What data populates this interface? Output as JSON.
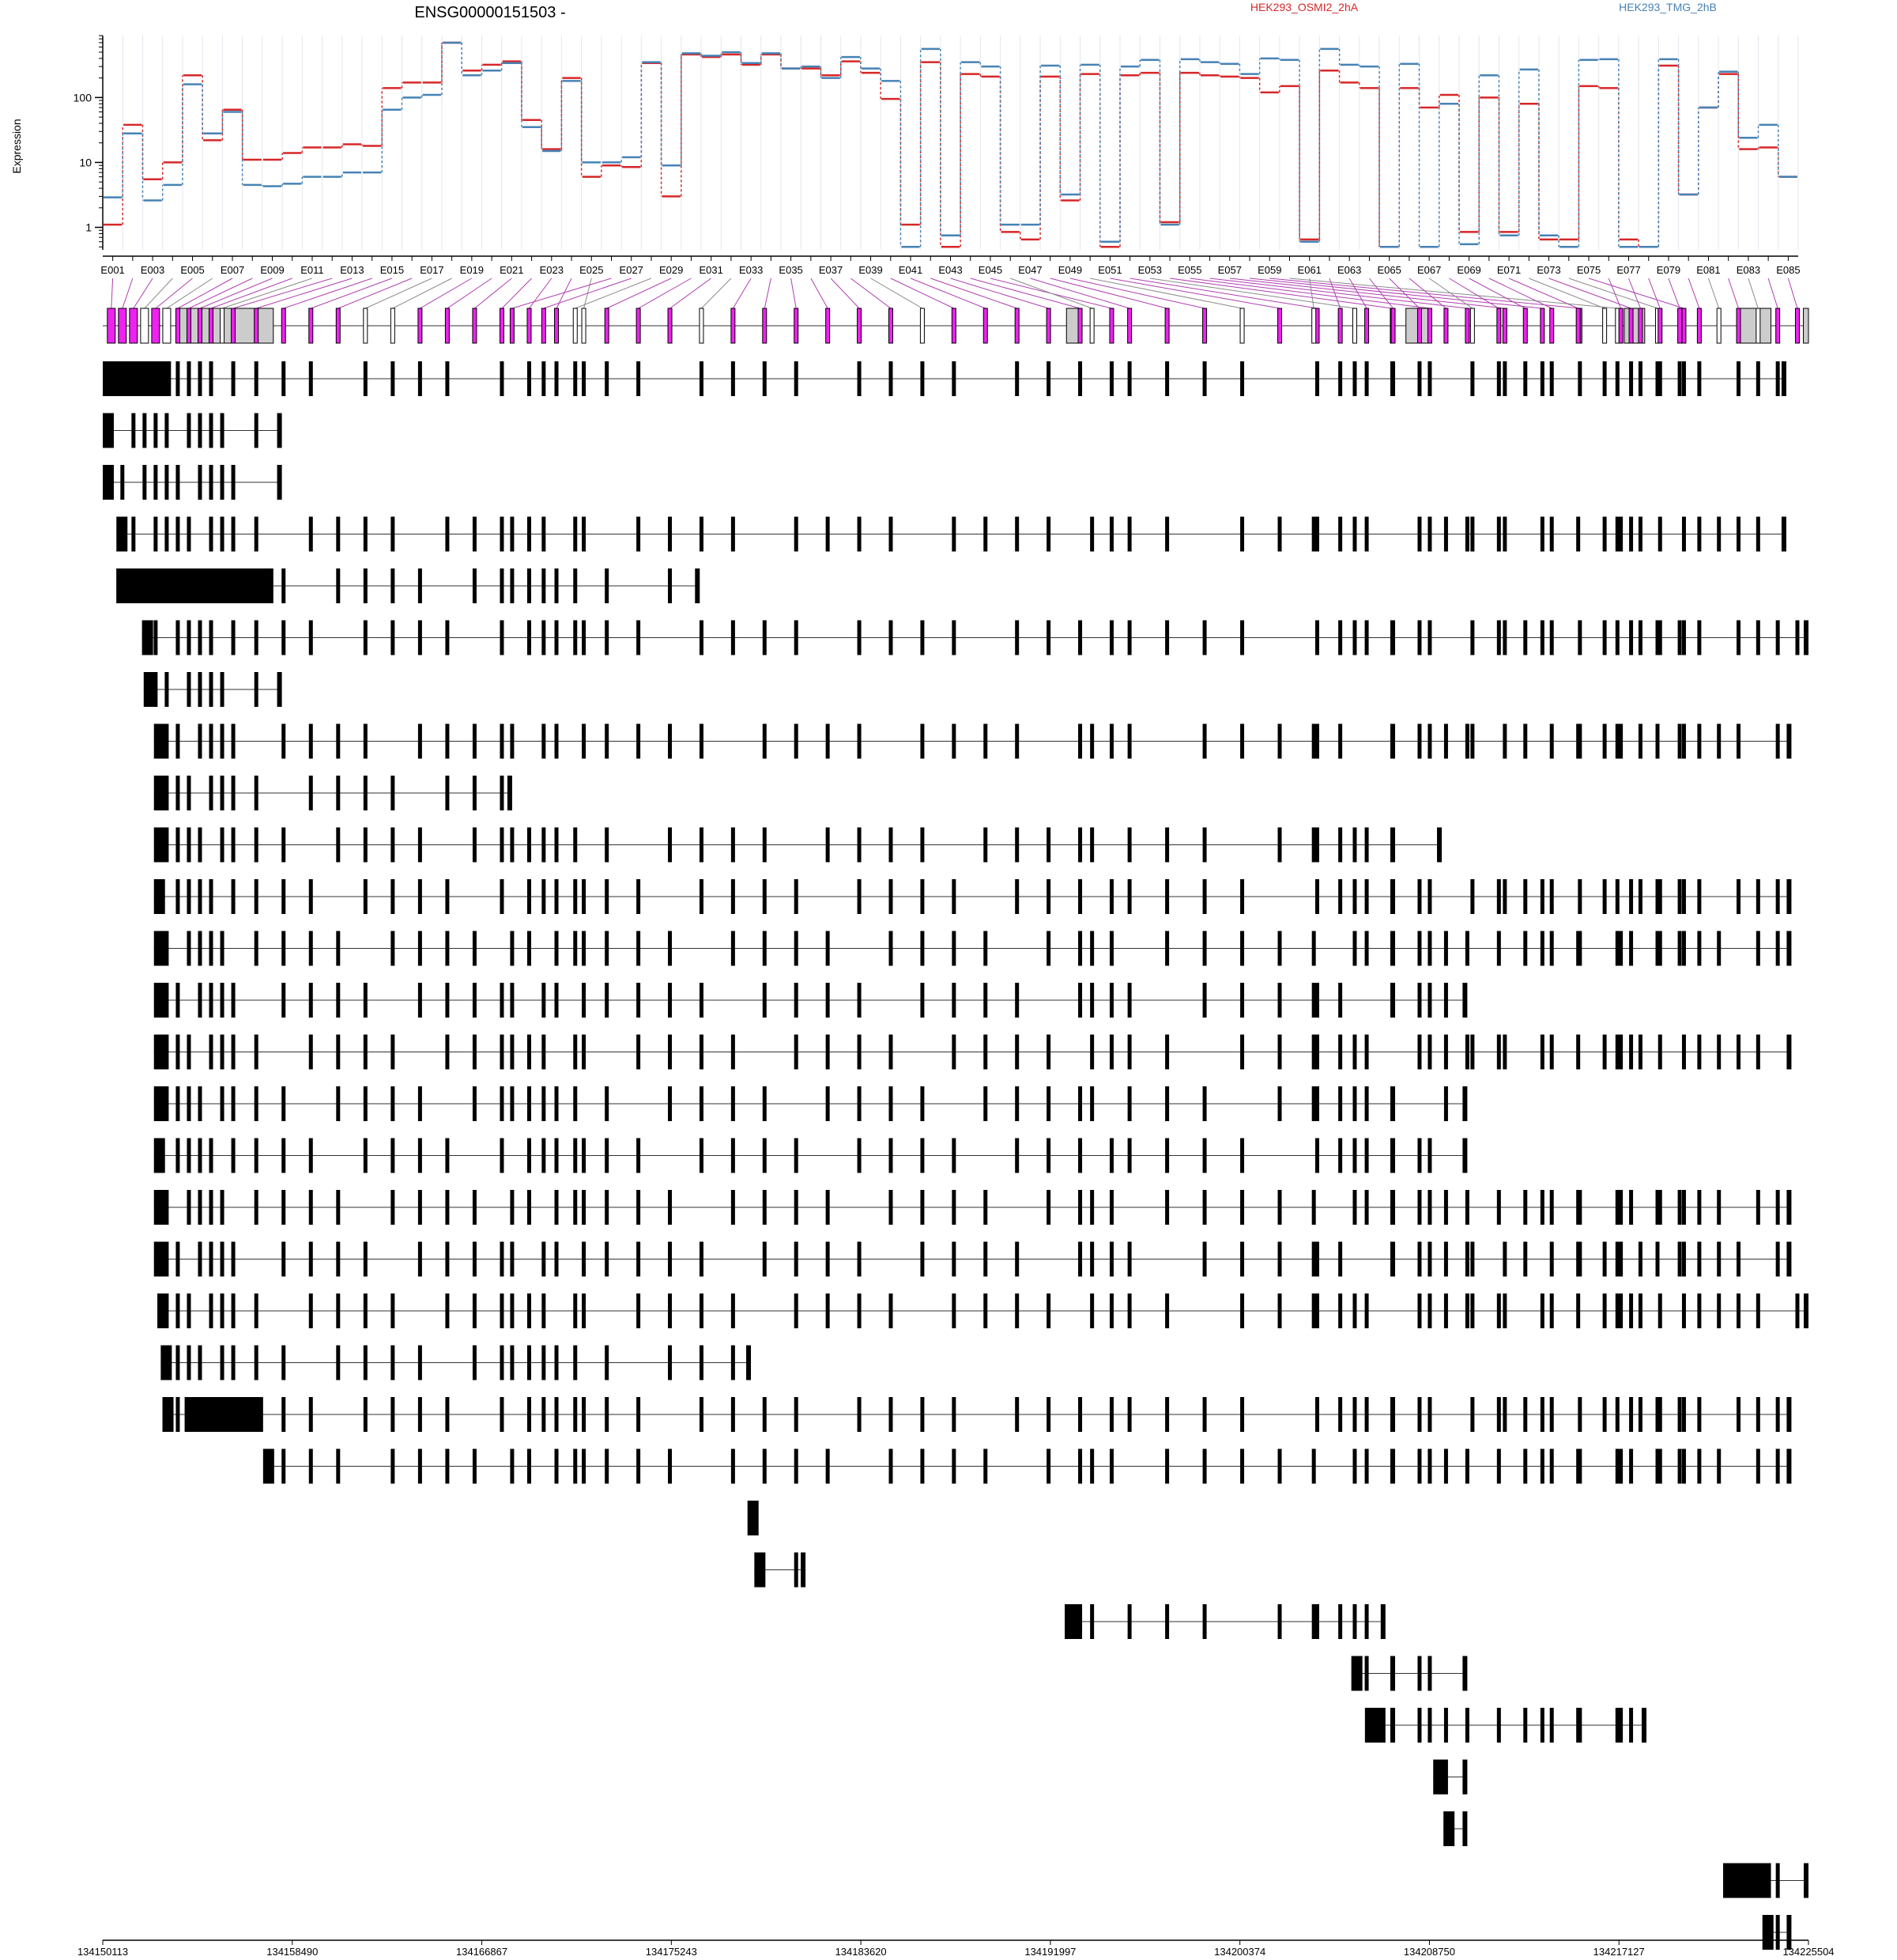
{
  "chart_data": {
    "type": "line",
    "title": "ENSG00000151503 -",
    "ylabel": "Expression",
    "yscale": "log",
    "ylim": [
      0.45,
      900
    ],
    "yticks": [
      1,
      10,
      100
    ],
    "series": [
      {
        "name": "HEK293_OSMI2_2hA",
        "color": "#d62728",
        "values": [
          1.1,
          38,
          5.5,
          10,
          220,
          22,
          65,
          11,
          11,
          14,
          17,
          17,
          19,
          18,
          140,
          170,
          170,
          700,
          260,
          320,
          360,
          45,
          16,
          200,
          6,
          9,
          8.5,
          340,
          3,
          460,
          420,
          460,
          320,
          460,
          280,
          280,
          220,
          360,
          240,
          95,
          1.1,
          350,
          0.5,
          230,
          210,
          0.85,
          0.65,
          210,
          2.6,
          230,
          0.5,
          220,
          240,
          1.2,
          240,
          220,
          210,
          200,
          120,
          150,
          0.65,
          260,
          170,
          140,
          0.5,
          140,
          70,
          110,
          0.85,
          100,
          0.85,
          80,
          0.65,
          0.65,
          150,
          140,
          0.65,
          0.5,
          310,
          3.2,
          70,
          230,
          16,
          17,
          6
        ]
      },
      {
        "name": "HEK293_TMG_2hB",
        "color": "#4682b4",
        "values": [
          2.9,
          28,
          2.6,
          4.5,
          160,
          28,
          60,
          4.5,
          4.3,
          4.7,
          6,
          6,
          7,
          7,
          65,
          100,
          110,
          700,
          220,
          260,
          340,
          35,
          15,
          180,
          10,
          10,
          12,
          350,
          9,
          480,
          440,
          500,
          340,
          480,
          280,
          300,
          200,
          420,
          280,
          180,
          0.5,
          560,
          0.75,
          350,
          300,
          1.1,
          1.1,
          310,
          3.2,
          320,
          0.6,
          300,
          380,
          1.1,
          390,
          350,
          330,
          230,
          400,
          380,
          0.6,
          560,
          320,
          300,
          0.5,
          330,
          0.5,
          80,
          0.55,
          220,
          0.75,
          270,
          0.75,
          0.5,
          380,
          390,
          0.5,
          0.5,
          390,
          3.2,
          70,
          250,
          24,
          38,
          6
        ]
      }
    ],
    "exon_labels": [
      "E001",
      "E003",
      "E005",
      "E007",
      "E009",
      "E011",
      "E013",
      "E015",
      "E017",
      "E019",
      "E021",
      "E023",
      "E025",
      "E027",
      "E029",
      "E031",
      "E033",
      "E035",
      "E037",
      "E039",
      "E041",
      "E043",
      "E045",
      "E047",
      "E049",
      "E051",
      "E053",
      "E055",
      "E057",
      "E059",
      "E061",
      "E063",
      "E065",
      "E067",
      "E069",
      "E071",
      "E073",
      "E075",
      "E077",
      "E079",
      "E081",
      "E083",
      "E085"
    ],
    "genomic_coordinates": [
      "134150113",
      "134158490",
      "134166867",
      "134175243",
      "134183620",
      "134191997",
      "134200374",
      "134208750",
      "134217127",
      "134225504"
    ],
    "n_transcripts": 31
  }
}
